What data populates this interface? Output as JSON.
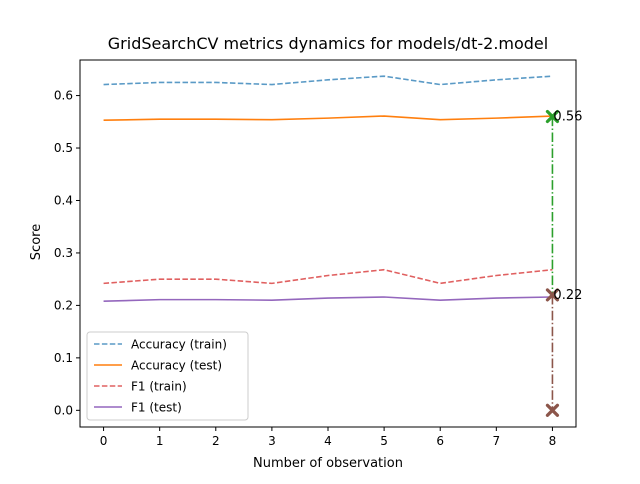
{
  "chart_data": {
    "type": "line",
    "title": "GridSearchCV metrics dynamics for models/dt-2.model",
    "xlabel": "Number of observation",
    "ylabel": "Score",
    "x": [
      0,
      1,
      2,
      3,
      4,
      5,
      6,
      7,
      8
    ],
    "xlim": [
      -0.42,
      8.42
    ],
    "ylim": [
      -0.0318,
      0.6678
    ],
    "xticks": [
      "0",
      "1",
      "2",
      "3",
      "4",
      "5",
      "6",
      "7",
      "8"
    ],
    "yticks": [
      "0.0",
      "0.1",
      "0.2",
      "0.3",
      "0.4",
      "0.5",
      "0.6"
    ],
    "ytick_values": [
      0.0,
      0.1,
      0.2,
      0.3,
      0.4,
      0.5,
      0.6
    ],
    "grid": false,
    "legend_position": "lower-left",
    "series": [
      {
        "name": "Accuracy (train)",
        "color": "#5a9ac6",
        "dash": "dashed",
        "values": [
          0.621,
          0.625,
          0.625,
          0.621,
          0.63,
          0.637,
          0.621,
          0.63,
          0.637
        ]
      },
      {
        "name": "Accuracy (test)",
        "color": "#ff7f0e",
        "dash": "solid",
        "values": [
          0.553,
          0.555,
          0.555,
          0.554,
          0.557,
          0.561,
          0.554,
          0.557,
          0.561
        ]
      },
      {
        "name": "F1 (train)",
        "color": "#e06060",
        "dash": "dashed",
        "values": [
          0.242,
          0.25,
          0.25,
          0.242,
          0.257,
          0.268,
          0.242,
          0.257,
          0.268
        ]
      },
      {
        "name": "F1 (test)",
        "color": "#9467bd",
        "dash": "solid",
        "values": [
          0.208,
          0.211,
          0.211,
          0.21,
          0.214,
          0.216,
          0.21,
          0.214,
          0.216
        ]
      }
    ],
    "annotations": [
      {
        "x": 8,
        "y": 0.56,
        "label": "0.56",
        "marker_color": "#2ca02c"
      },
      {
        "x": 8,
        "y": 0.22,
        "label": "0.22",
        "marker_color": "#8c564b"
      },
      {
        "x": 8,
        "y": 0.0,
        "label": "",
        "marker_color": "#8c564b"
      }
    ],
    "connectors": [
      {
        "x": 8,
        "y_from": 0.56,
        "y_to": 0.22,
        "color": "#2ca02c",
        "dash": "dashdot"
      },
      {
        "x": 8,
        "y_from": 0.22,
        "y_to": 0.0,
        "color": "#8c564b",
        "dash": "dashdot"
      }
    ]
  }
}
